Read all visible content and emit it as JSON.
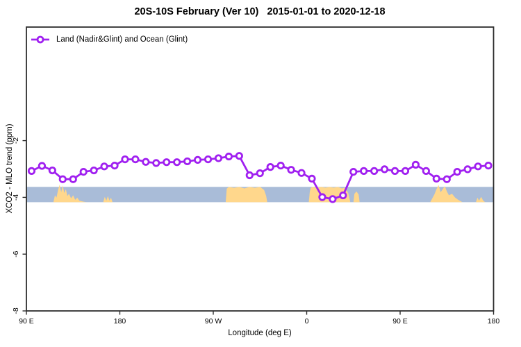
{
  "title": "20S-10S February (Ver 10)   2015-01-01 to 2020-12-18",
  "legend": {
    "label": "Land (Nadir&Glint) and Ocean (Glint)",
    "marker": "open-circle-on-line"
  },
  "colors": {
    "line": "#A020F0",
    "marker_fill": "#FFFFFF",
    "ocean_band": "#A9BCD8",
    "land_band": "#FFD78C",
    "axis": "#2E2E2E",
    "text": "#000000"
  },
  "chart_data": {
    "type": "line",
    "title": "20S-10S February (Ver 10)   2015-01-01 to 2020-12-18",
    "xlabel": "Longitude (deg E)",
    "ylabel": "XCO2 - MLO trend (ppm)",
    "xlim": [
      90,
      540
    ],
    "ylim": [
      -8,
      2
    ],
    "grid": false,
    "legend_position": "top-left-inside",
    "x_ticks": [
      {
        "pos": 90,
        "label": "90 E"
      },
      {
        "pos": 180,
        "label": "180"
      },
      {
        "pos": 270,
        "label": "90 W"
      },
      {
        "pos": 360,
        "label": "0"
      },
      {
        "pos": 450,
        "label": "90 E"
      },
      {
        "pos": 540,
        "label": "180"
      }
    ],
    "y_ticks": [
      {
        "pos": -2,
        "label": "-2"
      },
      {
        "pos": -4,
        "label": "-4"
      },
      {
        "pos": -6,
        "label": "-6"
      },
      {
        "pos": -8,
        "label": "-8"
      }
    ],
    "series": [
      {
        "name": "Land (Nadir&Glint) and Ocean (Glint)",
        "x": [
          95,
          105,
          115,
          125,
          135,
          145,
          155,
          165,
          175,
          185,
          195,
          205,
          215,
          225,
          235,
          245,
          255,
          265,
          275,
          285,
          295,
          305,
          315,
          325,
          335,
          345,
          355,
          365,
          375,
          385,
          395,
          405,
          415,
          425,
          435,
          445,
          455,
          465,
          475,
          485,
          495,
          505,
          515,
          525,
          535
        ],
        "y": [
          -3.07,
          -2.89,
          -3.05,
          -3.36,
          -3.36,
          -3.1,
          -3.05,
          -2.91,
          -2.88,
          -2.66,
          -2.66,
          -2.75,
          -2.79,
          -2.76,
          -2.76,
          -2.73,
          -2.68,
          -2.66,
          -2.62,
          -2.56,
          -2.54,
          -3.22,
          -3.15,
          -2.93,
          -2.88,
          -3.03,
          -3.14,
          -3.34,
          -3.99,
          -4.06,
          -3.93,
          -3.1,
          -3.07,
          -3.07,
          -3.01,
          -3.07,
          -3.07,
          -2.85,
          -3.07,
          -3.34,
          -3.36,
          -3.1,
          -3.01,
          -2.91,
          -2.88
        ]
      }
    ],
    "map_band": {
      "description": "land/ocean strip map of 20S-10S latitude belt",
      "y_top": -3.63,
      "y_bottom": -4.17,
      "land_patches": [
        {
          "name": "indonesia-nw-australia",
          "profile": [
            [
              116,
              1
            ],
            [
              117.5,
              0.55
            ],
            [
              119,
              0.7
            ],
            [
              120.5,
              0.2
            ],
            [
              122,
              -0.15
            ],
            [
              123.5,
              0.35
            ],
            [
              125,
              -0.1
            ],
            [
              126.5,
              0.4
            ],
            [
              128,
              0.15
            ],
            [
              129.5,
              0.6
            ],
            [
              131,
              0.45
            ],
            [
              133,
              0.75
            ],
            [
              135,
              0.55
            ],
            [
              137,
              0.85
            ],
            [
              139,
              0.7
            ],
            [
              141,
              0.9
            ],
            [
              144,
              0.95
            ],
            [
              148,
              1
            ]
          ]
        },
        {
          "name": "melanesia-islands",
          "profile": [
            [
              164,
              1
            ],
            [
              165.5,
              0.65
            ],
            [
              167,
              0.9
            ],
            [
              168.5,
              0.6
            ],
            [
              170,
              0.9
            ],
            [
              171.5,
              0.7
            ],
            [
              173,
              1
            ]
          ]
        },
        {
          "name": "south-america",
          "profile": [
            [
              282,
              1
            ],
            [
              283,
              0.12
            ],
            [
              285,
              0
            ],
            [
              290,
              0.06
            ],
            [
              295,
              0
            ],
            [
              300,
              0.1
            ],
            [
              305,
              0
            ],
            [
              310,
              0.06
            ],
            [
              315,
              0
            ],
            [
              319,
              0.2
            ],
            [
              321,
              0.6
            ],
            [
              322,
              1
            ]
          ]
        },
        {
          "name": "africa",
          "profile": [
            [
              362,
              1
            ],
            [
              363,
              0.3
            ],
            [
              364,
              0.05
            ],
            [
              366,
              0
            ],
            [
              370,
              0.05
            ],
            [
              374,
              0
            ],
            [
              378,
              0.05
            ],
            [
              382,
              0
            ],
            [
              386,
              0.05
            ],
            [
              390,
              0
            ],
            [
              394,
              0.1
            ],
            [
              397,
              0.05
            ],
            [
              400,
              0.4
            ],
            [
              402,
              1
            ]
          ]
        },
        {
          "name": "madagascar",
          "profile": [
            [
              405,
              1
            ],
            [
              406,
              0.45
            ],
            [
              408,
              0.3
            ],
            [
              410,
              0.5
            ],
            [
              411,
              1
            ]
          ]
        },
        {
          "name": "australia",
          "profile": [
            [
              479,
              1
            ],
            [
              481,
              0.75
            ],
            [
              483,
              0.5
            ],
            [
              485,
              0.15
            ],
            [
              487,
              -0.12
            ],
            [
              489,
              0.35
            ],
            [
              491,
              0.15
            ],
            [
              493,
              -0.05
            ],
            [
              495,
              0.3
            ],
            [
              497,
              0.55
            ],
            [
              500,
              0.45
            ],
            [
              503,
              0.7
            ],
            [
              506,
              0.85
            ],
            [
              510,
              1
            ]
          ]
        },
        {
          "name": "pacific-islands",
          "profile": [
            [
              523,
              1
            ],
            [
              524.5,
              0.7
            ],
            [
              526,
              0.9
            ],
            [
              528,
              0.65
            ],
            [
              530,
              0.9
            ],
            [
              532,
              1
            ]
          ]
        }
      ]
    }
  }
}
